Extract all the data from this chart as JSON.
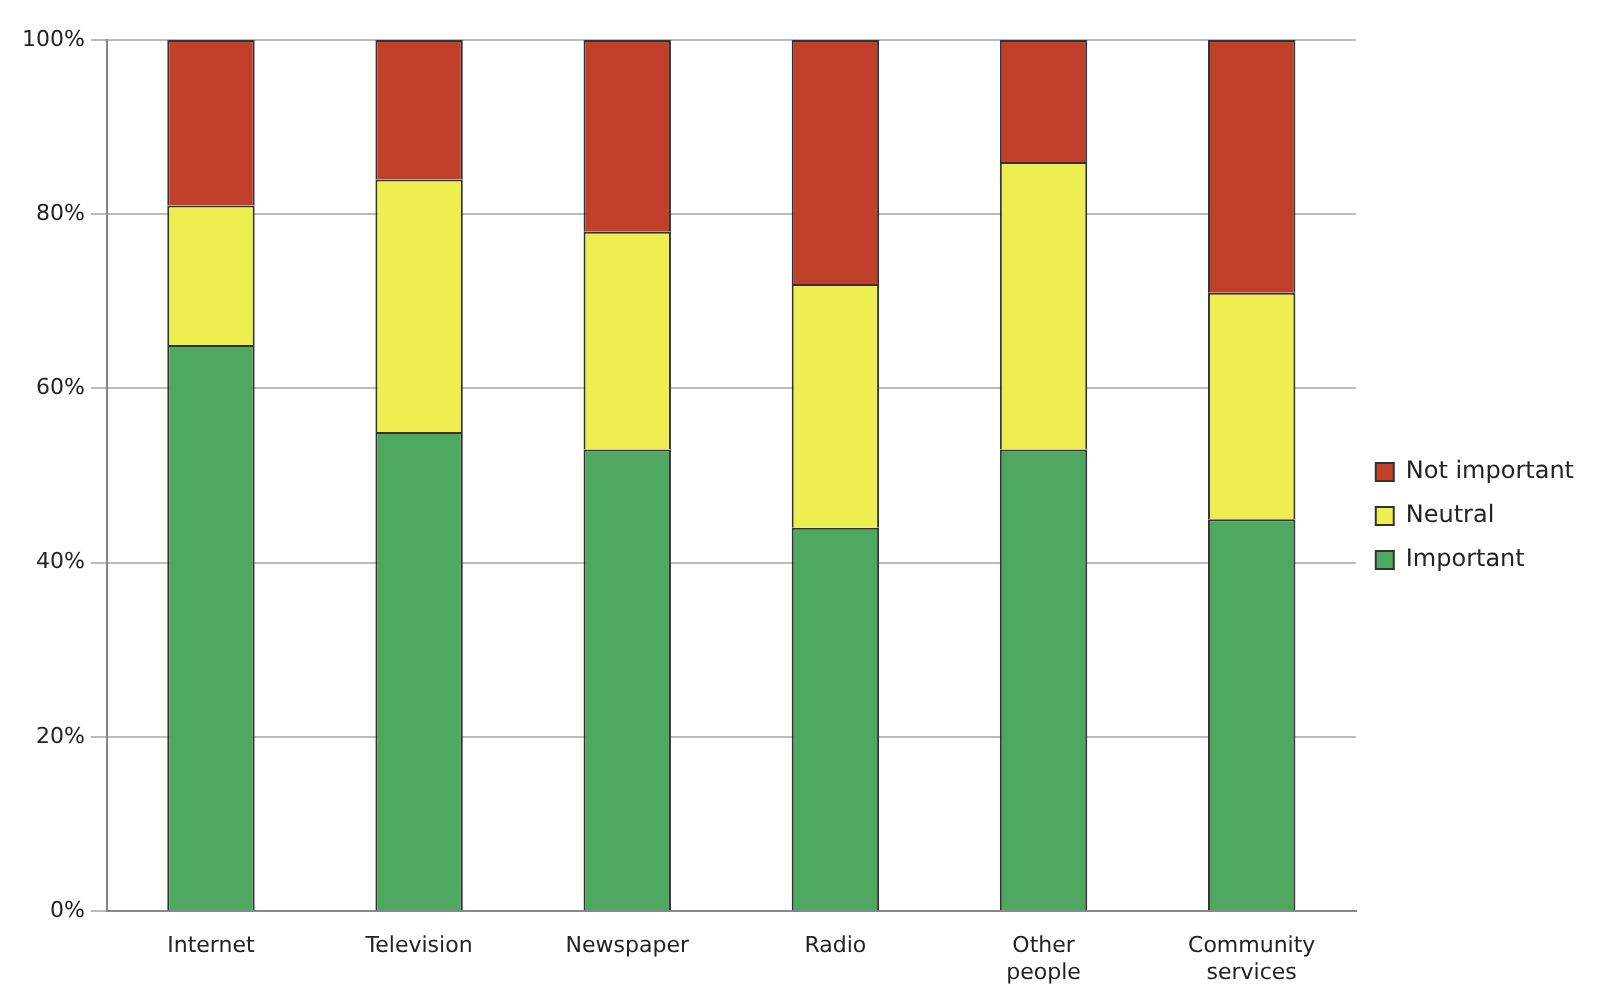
{
  "chart_data": {
    "type": "bar",
    "stacked": true,
    "categories": [
      "Internet",
      "Television",
      "Newspaper",
      "Radio",
      "Other people",
      "Community services"
    ],
    "series": [
      {
        "name": "Important",
        "color": "#4ea860",
        "values": [
          65,
          55,
          53,
          44,
          53,
          45
        ]
      },
      {
        "name": "Neutral",
        "color": "#eeee50",
        "values": [
          16,
          29,
          25,
          28,
          33,
          26
        ]
      },
      {
        "name": "Not important",
        "color": "#c0402a",
        "values": [
          19,
          16,
          22,
          28,
          14,
          29
        ]
      }
    ],
    "ylim": [
      0,
      100
    ],
    "yticks": [
      {
        "value": 0,
        "label": "0%"
      },
      {
        "value": 20,
        "label": "20%"
      },
      {
        "value": 40,
        "label": "40%"
      },
      {
        "value": 60,
        "label": "60%"
      },
      {
        "value": 80,
        "label": "80%"
      },
      {
        "value": 100,
        "label": "100%"
      }
    ],
    "grid": "y",
    "legend": "right"
  }
}
